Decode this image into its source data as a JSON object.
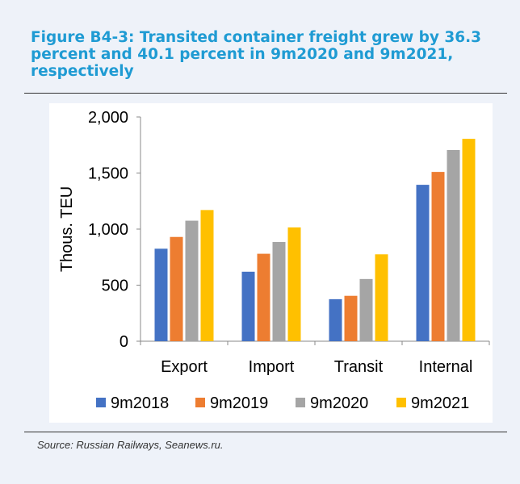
{
  "figure": {
    "title": "Figure B4-3: Transited container freight grew by 36.3 percent and 40.1 percent in 9m2020 and 9m2021, respectively",
    "source": "Source: Russian Railways, Seanews.ru."
  },
  "chart_data": {
    "type": "bar",
    "title": "",
    "xlabel": "",
    "ylabel": "Thous. TEU",
    "ylim": [
      0,
      2000
    ],
    "yticks": [
      0,
      500,
      1000,
      1500,
      2000
    ],
    "ytick_labels": [
      "0",
      "500",
      "1,000",
      "1,500",
      "2,000"
    ],
    "categories": [
      "Export",
      "Import",
      "Transit",
      "Internal"
    ],
    "series": [
      {
        "name": "9m2018",
        "color": "#4472c4",
        "values": [
          825,
          620,
          375,
          1395
        ]
      },
      {
        "name": "9m2019",
        "color": "#ed7d31",
        "values": [
          930,
          780,
          405,
          1510
        ]
      },
      {
        "name": "9m2020",
        "color": "#a5a5a5",
        "values": [
          1075,
          885,
          555,
          1705
        ]
      },
      {
        "name": "9m2021",
        "color": "#ffc000",
        "values": [
          1170,
          1015,
          775,
          1805
        ]
      }
    ],
    "grid": false,
    "legend": "bottom"
  }
}
